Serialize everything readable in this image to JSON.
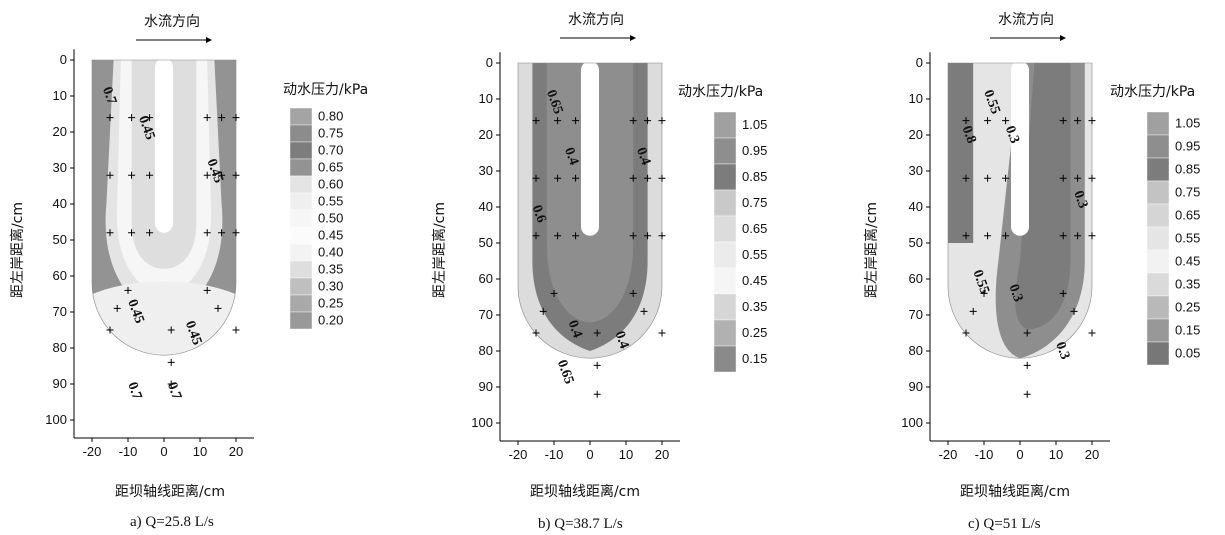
{
  "chart_data": [
    {
      "type": "contour",
      "flow_label": "水流方向",
      "xlabel": "距坝轴线距离/cm",
      "ylabel": "距左岸距离/cm",
      "legend_title": "动水压力/kPa",
      "caption": "a) Q=25.8 L/s",
      "xticks": [
        -20,
        -10,
        0,
        10,
        20
      ],
      "yticks": [
        0,
        10,
        20,
        30,
        40,
        50,
        60,
        70,
        80,
        90,
        100
      ],
      "xlim": [
        -25,
        25
      ],
      "ylim": [
        0,
        105
      ],
      "legend_levels": [
        "0.80",
        "0.75",
        "0.70",
        "0.65",
        "0.60",
        "0.55",
        "0.50",
        "0.45",
        "0.40",
        "0.35",
        "0.30",
        "0.25",
        "0.20"
      ],
      "legend_colors": [
        "#a4a4a4",
        "#8c8c8c",
        "#7d7d7d",
        "#939393",
        "#e4e4e4",
        "#efefef",
        "#f6f6f6",
        "#fbfbfb",
        "#f3f3f3",
        "#dedede",
        "#bfbfbf",
        "#a9a9a9",
        "#999999"
      ],
      "contour_labels": [
        {
          "text": "0.7",
          "x": -17,
          "y": 8
        },
        {
          "text": "0.45",
          "x": -7,
          "y": 16
        },
        {
          "text": "0.45",
          "x": 12,
          "y": 28
        },
        {
          "text": "0.45",
          "x": -10,
          "y": 67
        },
        {
          "text": "0.45",
          "x": 6,
          "y": 73
        },
        {
          "text": "0.7",
          "x": -10,
          "y": 90
        },
        {
          "text": "0.7",
          "x": 1,
          "y": 90
        }
      ],
      "measure_points": [
        [
          -15,
          16
        ],
        [
          -9,
          16
        ],
        [
          -4,
          16
        ],
        [
          12,
          16
        ],
        [
          16,
          16
        ],
        [
          20,
          16
        ],
        [
          -15,
          32
        ],
        [
          -9,
          32
        ],
        [
          -4,
          32
        ],
        [
          12,
          32
        ],
        [
          16,
          32
        ],
        [
          20,
          32
        ],
        [
          -15,
          48
        ],
        [
          -9,
          48
        ],
        [
          -4,
          48
        ],
        [
          12,
          48
        ],
        [
          16,
          48
        ],
        [
          20,
          48
        ],
        [
          -10,
          64
        ],
        [
          12,
          64
        ],
        [
          -13,
          69
        ],
        [
          15,
          69
        ],
        [
          -15,
          75
        ],
        [
          2,
          75
        ],
        [
          20,
          75
        ],
        [
          2,
          84
        ],
        [
          2,
          90
        ]
      ]
    },
    {
      "type": "contour",
      "flow_label": "水流方向",
      "xlabel": "距坝轴线距离/cm",
      "ylabel": "距左岸距离/cm",
      "legend_title": "动水压力/kPa",
      "caption": "b) Q=38.7 L/s",
      "xticks": [
        -20,
        -10,
        0,
        10,
        20
      ],
      "yticks": [
        0,
        10,
        20,
        30,
        40,
        50,
        60,
        70,
        80,
        90,
        100
      ],
      "xlim": [
        -25,
        25
      ],
      "ylim": [
        0,
        105
      ],
      "legend_levels": [
        "1.05",
        "0.95",
        "0.85",
        "0.75",
        "0.65",
        "0.55",
        "0.45",
        "0.35",
        "0.25",
        "0.15"
      ],
      "legend_colors": [
        "#a0a0a0",
        "#8e8e8e",
        "#7c7c7c",
        "#c9c9c9",
        "#dcdcdc",
        "#ebebeb",
        "#f5f5f5",
        "#d6d6d6",
        "#b1b1b1",
        "#8a8a8a"
      ],
      "contour_labels": [
        {
          "text": "0.65",
          "x": -12,
          "y": 8
        },
        {
          "text": "0.4",
          "x": -7,
          "y": 24
        },
        {
          "text": "0.4",
          "x": 13,
          "y": 24
        },
        {
          "text": "0.6",
          "x": -16,
          "y": 40
        },
        {
          "text": "0.4",
          "x": -6,
          "y": 72
        },
        {
          "text": "0.4",
          "x": 7,
          "y": 75
        },
        {
          "text": "0.65",
          "x": -9,
          "y": 83
        }
      ],
      "measure_points": [
        [
          -15,
          16
        ],
        [
          -9,
          16
        ],
        [
          -4,
          16
        ],
        [
          12,
          16
        ],
        [
          16,
          16
        ],
        [
          20,
          16
        ],
        [
          -15,
          32
        ],
        [
          -9,
          32
        ],
        [
          -4,
          32
        ],
        [
          12,
          32
        ],
        [
          16,
          32
        ],
        [
          20,
          32
        ],
        [
          -15,
          48
        ],
        [
          -9,
          48
        ],
        [
          -4,
          48
        ],
        [
          12,
          48
        ],
        [
          16,
          48
        ],
        [
          20,
          48
        ],
        [
          -10,
          64
        ],
        [
          12,
          64
        ],
        [
          -13,
          69
        ],
        [
          15,
          69
        ],
        [
          -15,
          75
        ],
        [
          2,
          75
        ],
        [
          20,
          75
        ],
        [
          2,
          84
        ],
        [
          2,
          92
        ]
      ]
    },
    {
      "type": "contour",
      "flow_label": "水流方向",
      "xlabel": "距坝轴线距离/cm",
      "ylabel": "距左岸距离/cm",
      "legend_title": "动水压力/kPa",
      "caption": "c) Q=51 L/s",
      "xticks": [
        -20,
        -10,
        0,
        10,
        20
      ],
      "yticks": [
        0,
        10,
        20,
        30,
        40,
        50,
        60,
        70,
        80,
        90,
        100
      ],
      "xlim": [
        -25,
        25
      ],
      "ylim": [
        0,
        105
      ],
      "legend_levels": [
        "1.05",
        "0.95",
        "0.85",
        "0.75",
        "0.65",
        "0.55",
        "0.45",
        "0.35",
        "0.25",
        "0.15",
        "0.05"
      ],
      "legend_colors": [
        "#a0a0a0",
        "#8e8e8e",
        "#7c7c7c",
        "#c3c3c3",
        "#d5d5d5",
        "#e5e5e5",
        "#f2f2f2",
        "#dadada",
        "#b9b9b9",
        "#989898",
        "#777777"
      ],
      "contour_labels": [
        {
          "text": "0.55",
          "x": -10,
          "y": 8
        },
        {
          "text": "0.8",
          "x": -16,
          "y": 18
        },
        {
          "text": "0.3",
          "x": -4,
          "y": 18
        },
        {
          "text": "0.3",
          "x": 15,
          "y": 36
        },
        {
          "text": "0.55",
          "x": -13,
          "y": 58
        },
        {
          "text": "0.3",
          "x": -3,
          "y": 62
        },
        {
          "text": "0.3",
          "x": 10,
          "y": 78
        }
      ],
      "measure_points": [
        [
          -15,
          16
        ],
        [
          -9,
          16
        ],
        [
          -4,
          16
        ],
        [
          12,
          16
        ],
        [
          16,
          16
        ],
        [
          20,
          16
        ],
        [
          -15,
          32
        ],
        [
          -9,
          32
        ],
        [
          -4,
          32
        ],
        [
          12,
          32
        ],
        [
          16,
          32
        ],
        [
          20,
          32
        ],
        [
          -15,
          48
        ],
        [
          -9,
          48
        ],
        [
          -4,
          48
        ],
        [
          12,
          48
        ],
        [
          16,
          48
        ],
        [
          20,
          48
        ],
        [
          -10,
          64
        ],
        [
          12,
          64
        ],
        [
          -13,
          69
        ],
        [
          15,
          69
        ],
        [
          -15,
          75
        ],
        [
          2,
          75
        ],
        [
          20,
          75
        ],
        [
          2,
          84
        ],
        [
          2,
          92
        ]
      ]
    }
  ]
}
